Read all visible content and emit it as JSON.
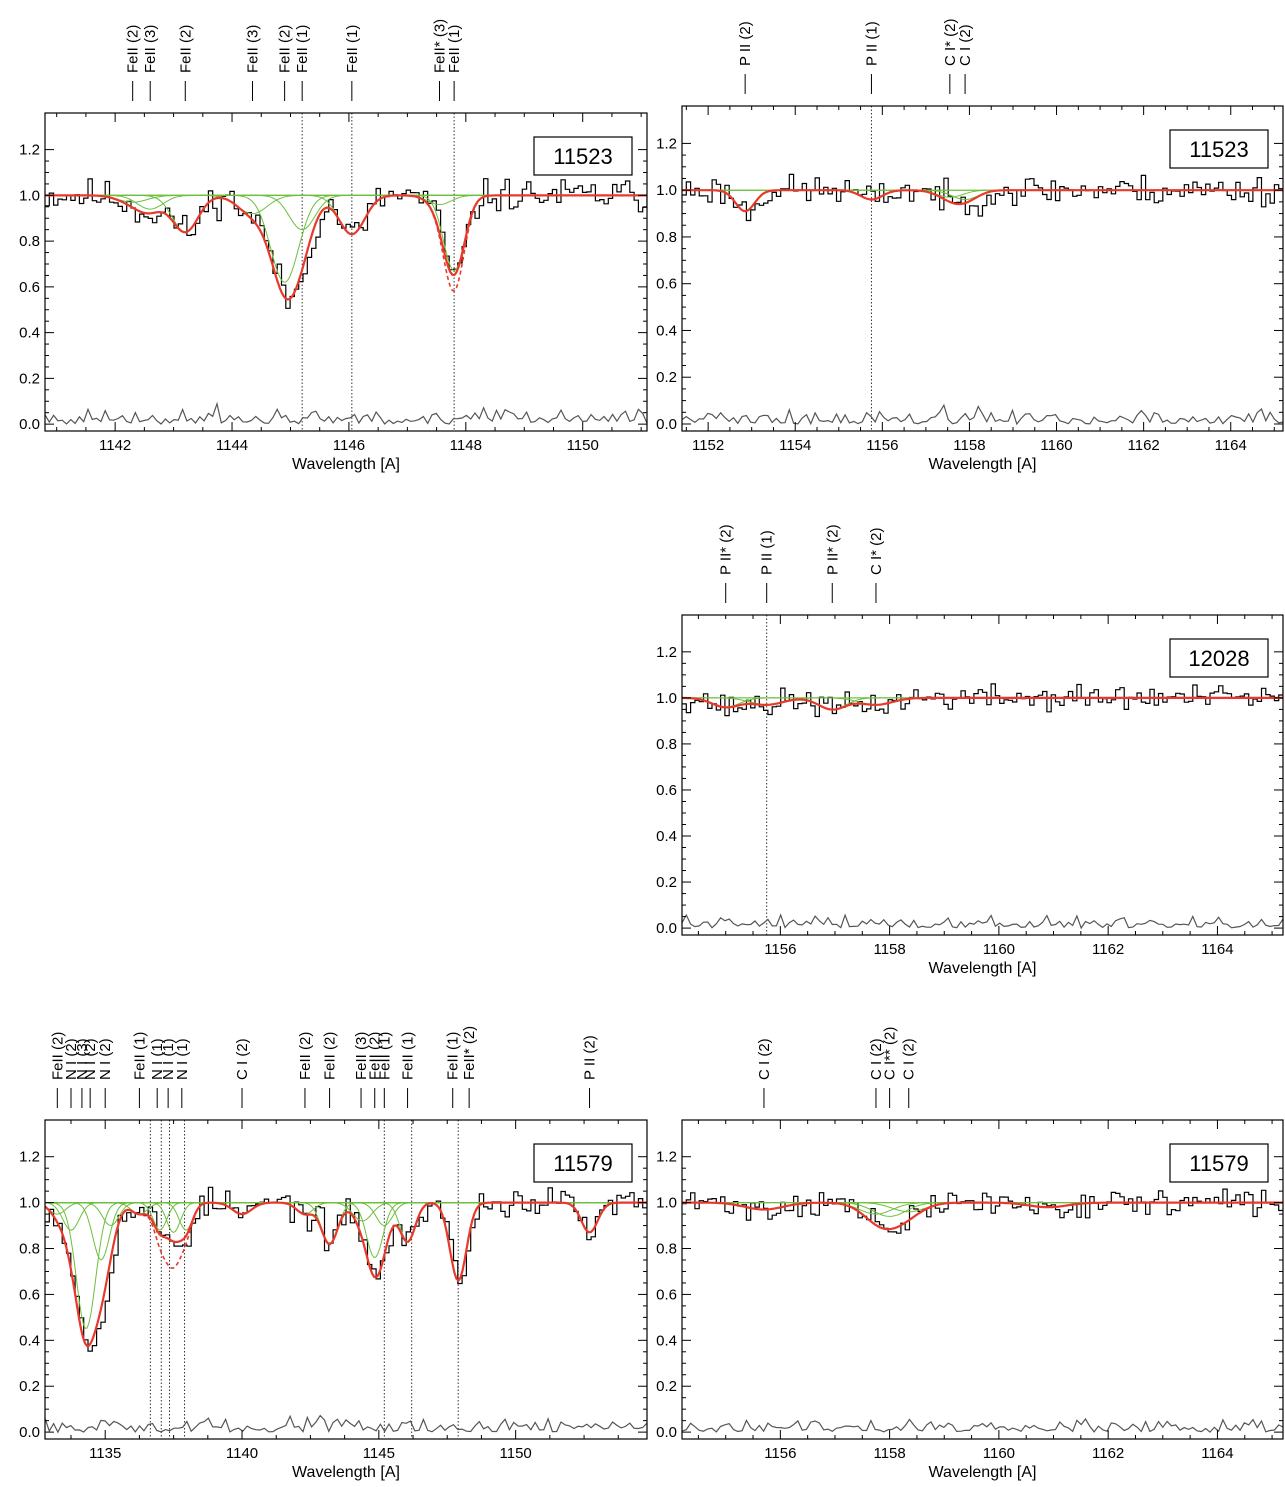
{
  "colors": {
    "data": "#000000",
    "fit": "#e8392a",
    "components": "#6cbf3c",
    "residual": "#555555",
    "marker": "#333333"
  },
  "chart_data": [
    {
      "type": "line",
      "label": "11523",
      "xlabel": "Wavelength [A]",
      "xlim": [
        1140.8,
        1151.1
      ],
      "ylim": [
        -0.03,
        1.36
      ],
      "xticks": [
        1142,
        1144,
        1146,
        1148,
        1150
      ],
      "xtick_labels": [
        "1142",
        "1144",
        "1146",
        "1148",
        "1150"
      ],
      "yticks": [
        0.0,
        0.2,
        0.4,
        0.6,
        0.8,
        1.0,
        1.2
      ],
      "ytick_labels": [
        "0.0",
        "0.2",
        "0.4",
        "0.6",
        "0.8",
        "1.0",
        "1.2"
      ],
      "dotted_lines": [
        1145.2,
        1146.05,
        1147.8
      ],
      "line_labels": [
        {
          "x": 1142.3,
          "names": [
            "FeII (2)"
          ]
        },
        {
          "x": 1142.6,
          "names": [
            "FeII (3)"
          ]
        },
        {
          "x": 1143.2,
          "names": [
            "FeII (2)"
          ]
        },
        {
          "x": 1144.35,
          "names": [
            "FeII (3)"
          ]
        },
        {
          "x": 1144.9,
          "names": [
            "FeII (2)"
          ]
        },
        {
          "x": 1145.2,
          "names": [
            "FeII (1)"
          ]
        },
        {
          "x": 1146.05,
          "names": [
            "FeII (1)"
          ]
        },
        {
          "x": 1147.55,
          "names": [
            "FeII* (3)"
          ]
        },
        {
          "x": 1147.8,
          "names": [
            "FeII (1)"
          ]
        }
      ],
      "fit_absorptions": [
        {
          "x": 1142.3,
          "depth": 0.03,
          "width": 0.25
        },
        {
          "x": 1142.6,
          "depth": 0.06,
          "width": 0.22
        },
        {
          "x": 1143.2,
          "depth": 0.16,
          "width": 0.22
        },
        {
          "x": 1144.35,
          "depth": 0.08,
          "width": 0.25
        },
        {
          "x": 1144.9,
          "depth": 0.38,
          "width": 0.24
        },
        {
          "x": 1145.2,
          "depth": 0.15,
          "width": 0.22
        },
        {
          "x": 1146.05,
          "depth": 0.17,
          "width": 0.22
        },
        {
          "x": 1147.55,
          "depth": 0.04,
          "width": 0.2
        },
        {
          "x": 1147.8,
          "depth": 0.33,
          "width": 0.18
        }
      ],
      "dashed_extra": {
        "x": 1147.8,
        "depth": 0.07,
        "width": 0.15
      },
      "noise": 0.045,
      "seed": 11
    },
    {
      "type": "line",
      "label": "11523",
      "xlabel": "Wavelength [A]",
      "xlim": [
        1151.4,
        1165.2
      ],
      "ylim": [
        -0.03,
        1.36
      ],
      "xticks": [
        1152,
        1154,
        1156,
        1158,
        1160,
        1162,
        1164
      ],
      "xtick_labels": [
        "1152",
        "1154",
        "1156",
        "1158",
        "1160",
        "1162",
        "1164"
      ],
      "yticks": [
        0.0,
        0.2,
        0.4,
        0.6,
        0.8,
        1.0,
        1.2
      ],
      "ytick_labels": [
        "0.0",
        "0.2",
        "0.4",
        "0.6",
        "0.8",
        "1.0",
        "1.2"
      ],
      "dotted_lines": [
        1155.75
      ],
      "line_labels": [
        {
          "x": 1152.85,
          "names": [
            "P II (2)"
          ]
        },
        {
          "x": 1155.75,
          "names": [
            "P II (1)"
          ]
        },
        {
          "x": 1157.55,
          "names": [
            "C I* (2)"
          ]
        },
        {
          "x": 1157.9,
          "names": [
            "C I (2)"
          ]
        }
      ],
      "fit_absorptions": [
        {
          "x": 1152.85,
          "depth": 0.09,
          "width": 0.22
        },
        {
          "x": 1155.75,
          "depth": 0.04,
          "width": 0.25
        },
        {
          "x": 1157.55,
          "depth": 0.03,
          "width": 0.3
        },
        {
          "x": 1157.9,
          "depth": 0.04,
          "width": 0.3
        }
      ],
      "noise": 0.04,
      "seed": 23
    },
    {
      "type": "line",
      "label": "12028",
      "xlabel": "Wavelength [A]",
      "xlim": [
        1154.2,
        1165.2
      ],
      "ylim": [
        -0.03,
        1.36
      ],
      "xticks": [
        1156,
        1158,
        1160,
        1162,
        1164
      ],
      "xtick_labels": [
        "1156",
        "1158",
        "1160",
        "1162",
        "1164"
      ],
      "yticks": [
        0.0,
        0.2,
        0.4,
        0.6,
        0.8,
        1.0,
        1.2
      ],
      "ytick_labels": [
        "0.0",
        "0.2",
        "0.4",
        "0.6",
        "0.8",
        "1.0",
        "1.2"
      ],
      "dotted_lines": [
        1155.75
      ],
      "line_labels": [
        {
          "x": 1155.0,
          "names": [
            "P II* (2)"
          ]
        },
        {
          "x": 1155.75,
          "names": [
            "P II (1)"
          ]
        },
        {
          "x": 1156.95,
          "names": [
            "P II* (2)"
          ]
        },
        {
          "x": 1157.75,
          "names": [
            "C I* (2)"
          ]
        }
      ],
      "fit_absorptions": [
        {
          "x": 1155.0,
          "depth": 0.04,
          "width": 0.25
        },
        {
          "x": 1155.75,
          "depth": 0.03,
          "width": 0.3
        },
        {
          "x": 1156.95,
          "depth": 0.05,
          "width": 0.25
        },
        {
          "x": 1157.75,
          "depth": 0.03,
          "width": 0.3
        }
      ],
      "noise": 0.035,
      "seed": 37
    },
    {
      "type": "line",
      "label": "11579",
      "xlabel": "Wavelength [A]",
      "xlim": [
        1132.8,
        1154.8
      ],
      "ylim": [
        -0.03,
        1.36
      ],
      "xticks": [
        1135,
        1140,
        1145,
        1150
      ],
      "xtick_labels": [
        "1135",
        "1140",
        "1145",
        "1150"
      ],
      "yticks": [
        0.0,
        0.2,
        0.4,
        0.6,
        0.8,
        1.0,
        1.2
      ],
      "ytick_labels": [
        "0.0",
        "0.2",
        "0.4",
        "0.6",
        "0.8",
        "1.0",
        "1.2"
      ],
      "dotted_lines": [
        1136.65,
        1137.05,
        1137.35,
        1137.9,
        1145.2,
        1146.2,
        1147.9
      ],
      "line_labels": [
        {
          "x": 1133.25,
          "names": [
            "FeII (2)"
          ]
        },
        {
          "x": 1133.75,
          "names": [
            "N I (2)"
          ]
        },
        {
          "x": 1134.15,
          "names": [
            "N I (3)"
          ]
        },
        {
          "x": 1134.45,
          "names": [
            "N I (2)"
          ]
        },
        {
          "x": 1135.0,
          "names": [
            "N I (2)"
          ]
        },
        {
          "x": 1136.25,
          "names": [
            "FeII (1)"
          ]
        },
        {
          "x": 1136.9,
          "names": [
            "N I (1)"
          ]
        },
        {
          "x": 1137.3,
          "names": [
            "N I (1)"
          ]
        },
        {
          "x": 1137.8,
          "names": [
            "N I (1)"
          ]
        },
        {
          "x": 1140.0,
          "names": [
            "C I (2)"
          ]
        },
        {
          "x": 1142.3,
          "names": [
            "FeII (2)"
          ]
        },
        {
          "x": 1143.2,
          "names": [
            "FeII (2)"
          ]
        },
        {
          "x": 1144.35,
          "names": [
            "FeII (3)"
          ]
        },
        {
          "x": 1144.85,
          "names": [
            "FeII (2)"
          ]
        },
        {
          "x": 1145.2,
          "names": [
            "FeII (1)"
          ]
        },
        {
          "x": 1146.05,
          "names": [
            "FeII (1)"
          ]
        },
        {
          "x": 1147.7,
          "names": [
            "FeII (1)"
          ]
        },
        {
          "x": 1148.3,
          "names": [
            "FeII* (2)"
          ]
        },
        {
          "x": 1152.7,
          "names": [
            "P II (2)"
          ]
        }
      ],
      "fit_absorptions": [
        {
          "x": 1133.25,
          "depth": 0.05,
          "width": 0.3
        },
        {
          "x": 1133.75,
          "depth": 0.12,
          "width": 0.3
        },
        {
          "x": 1134.3,
          "depth": 0.55,
          "width": 0.35
        },
        {
          "x": 1134.85,
          "depth": 0.25,
          "width": 0.3
        },
        {
          "x": 1135.2,
          "depth": 0.1,
          "width": 0.3
        },
        {
          "x": 1136.25,
          "depth": 0.05,
          "width": 0.3
        },
        {
          "x": 1137.0,
          "depth": 0.12,
          "width": 0.25
        },
        {
          "x": 1137.5,
          "depth": 0.13,
          "width": 0.25
        },
        {
          "x": 1137.95,
          "depth": 0.12,
          "width": 0.25
        },
        {
          "x": 1140.0,
          "depth": 0.05,
          "width": 0.35
        },
        {
          "x": 1142.3,
          "depth": 0.05,
          "width": 0.3
        },
        {
          "x": 1143.2,
          "depth": 0.18,
          "width": 0.3
        },
        {
          "x": 1144.4,
          "depth": 0.08,
          "width": 0.35
        },
        {
          "x": 1144.85,
          "depth": 0.24,
          "width": 0.3
        },
        {
          "x": 1145.2,
          "depth": 0.1,
          "width": 0.3
        },
        {
          "x": 1146.05,
          "depth": 0.17,
          "width": 0.28
        },
        {
          "x": 1147.9,
          "depth": 0.34,
          "width": 0.3
        },
        {
          "x": 1152.7,
          "depth": 0.13,
          "width": 0.3
        }
      ],
      "dashed_extra": {
        "x": 1137.4,
        "depth": 0.12,
        "width": 0.35
      },
      "noise": 0.04,
      "seed": 53
    },
    {
      "type": "line",
      "label": "11579",
      "xlabel": "Wavelength [A]",
      "xlim": [
        1154.2,
        1165.2
      ],
      "ylim": [
        -0.03,
        1.36
      ],
      "xticks": [
        1156,
        1158,
        1160,
        1162,
        1164
      ],
      "xtick_labels": [
        "1156",
        "1158",
        "1160",
        "1162",
        "1164"
      ],
      "yticks": [
        0.0,
        0.2,
        0.4,
        0.6,
        0.8,
        1.0,
        1.2
      ],
      "ytick_labels": [
        "0.0",
        "0.2",
        "0.4",
        "0.6",
        "0.8",
        "1.0",
        "1.2"
      ],
      "dotted_lines": [],
      "line_labels": [
        {
          "x": 1155.7,
          "names": [
            "C I (2)"
          ]
        },
        {
          "x": 1157.75,
          "names": [
            "C I (2)"
          ]
        },
        {
          "x": 1158.0,
          "names": [
            "C I** (2)"
          ]
        },
        {
          "x": 1158.35,
          "names": [
            "C I (2)"
          ]
        }
      ],
      "fit_absorptions": [
        {
          "x": 1155.7,
          "depth": 0.03,
          "width": 0.35
        },
        {
          "x": 1157.75,
          "depth": 0.05,
          "width": 0.3
        },
        {
          "x": 1158.0,
          "depth": 0.06,
          "width": 0.3
        },
        {
          "x": 1158.35,
          "depth": 0.04,
          "width": 0.3
        },
        {
          "x": 1160.9,
          "depth": 0.02,
          "width": 0.35
        }
      ],
      "noise": 0.035,
      "seed": 71
    }
  ]
}
